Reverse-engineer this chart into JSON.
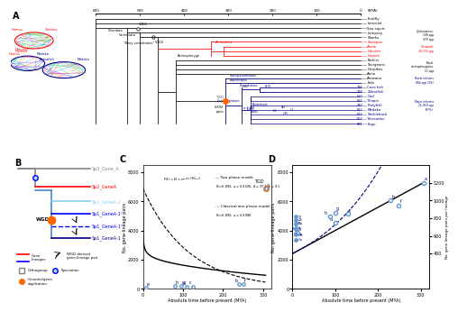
{
  "background_color": "#ffffff",
  "label_A": "A",
  "label_B": "B",
  "label_C": "C",
  "label_D": "D",
  "panel_A": {
    "timeline_ticks": [
      600,
      500,
      400,
      300,
      200,
      100,
      0
    ],
    "timeline_label": "(MYA)",
    "red_species": [
      "Xenopus",
      "Anole",
      "Chicken",
      "Human"
    ],
    "blue_species": [
      "Cave fish",
      "Zebrafish",
      "Cod",
      "Tilapia",
      "Platyfish",
      "Medaka",
      "Stickleback",
      "Tetraodon",
      "Fugu"
    ],
    "all_species": [
      "Fruitfly",
      "Lancelet",
      "Sea squirt",
      "Lamprey",
      "Sharks",
      "Xenopus",
      "Anole",
      "Chicken",
      "Human",
      "Bichirs",
      "Sturgeons",
      "Garpikes",
      "Amia",
      "Arowana",
      "Eels",
      "Cave fish",
      "Zebrafish",
      "Cod",
      "Tilapia",
      "Platyfish",
      "Medaka",
      "Stickleback",
      "Tetraodon",
      "Fugu"
    ]
  },
  "panel_C": {
    "N": 6892,
    "alpha_two": 0.0026,
    "beta_two": 37.7,
    "n_two": 9.1,
    "alpha_classic": 0.0088,
    "tgd_time": 306,
    "xlabel": "Absolute time before present (MYA)",
    "ylabel": "No. gene-lineage pairs",
    "ylim": [
      0,
      8000
    ],
    "xlim": [
      0,
      320
    ]
  },
  "panel_D": {
    "xlabel": "Absolute time before present (MYA)",
    "ylabel_left": "No. gene-lineage pairs",
    "ylabel_right": "No. gene-lineage pairs per lineage",
    "xlim": [
      0,
      320
    ],
    "ylim_left": [
      0,
      8000
    ],
    "ylim_right": [
      0,
      1400
    ],
    "yticks_right": [
      400,
      600,
      800,
      1000,
      1200
    ],
    "scatter_color": "#6699cc",
    "solid_line_color": "#000000",
    "dashed_line_color": "#00008b"
  }
}
